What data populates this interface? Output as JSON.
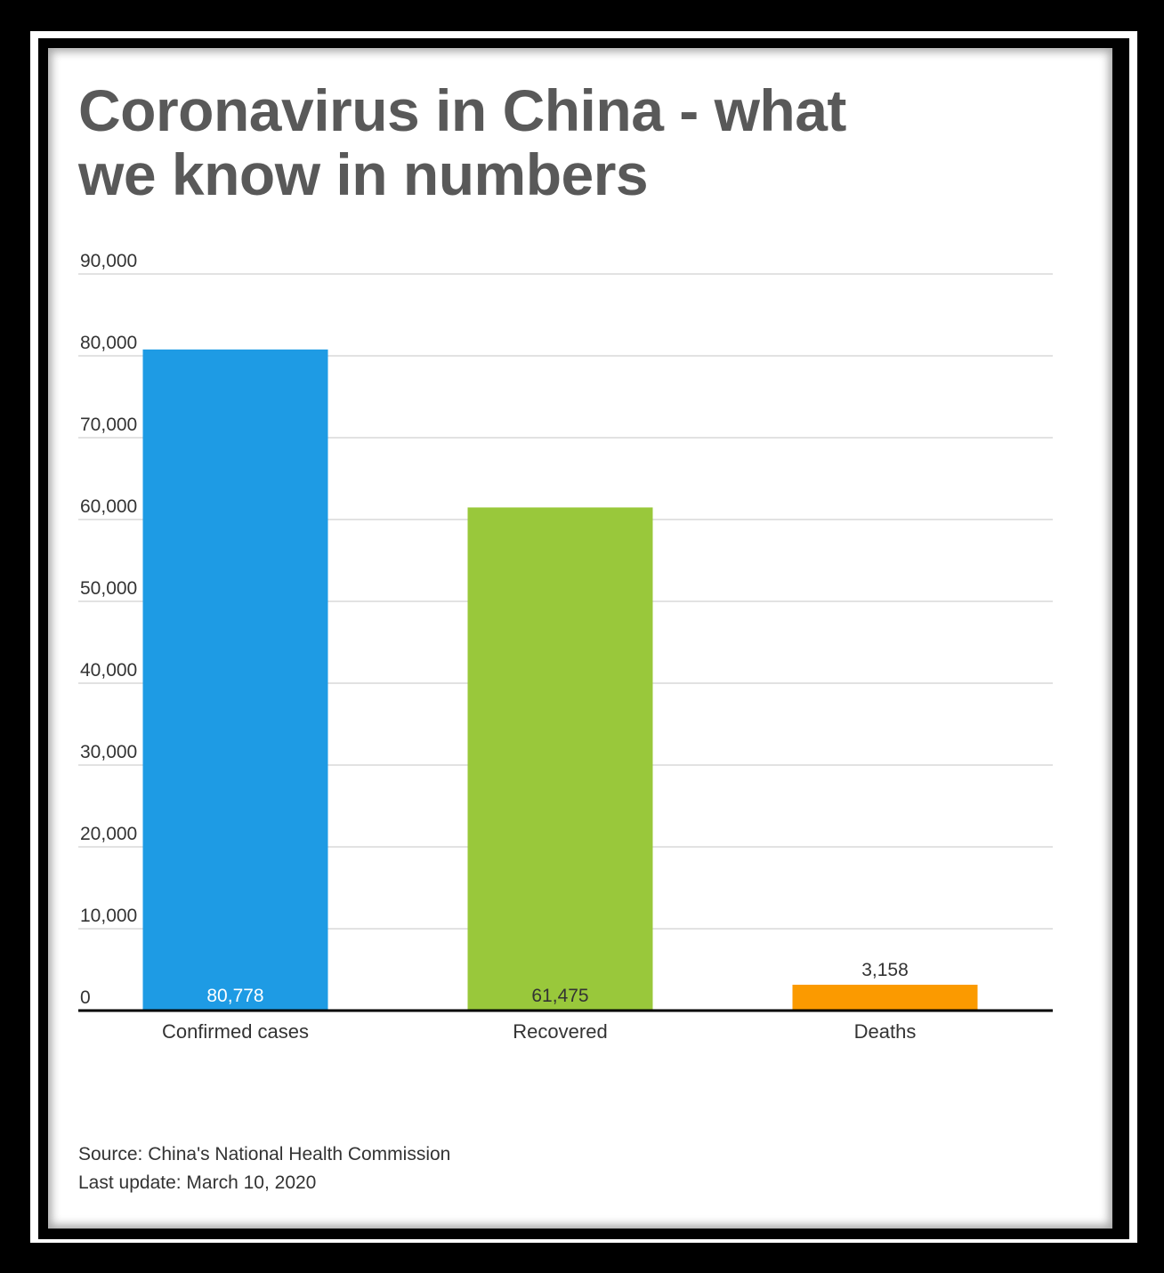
{
  "title_lines": [
    "Coronavirus in China - what",
    "we know in numbers"
  ],
  "source": "Source: China's National Health Commission",
  "last_update": "Last update: March 10, 2020",
  "colors": {
    "confirmed": "#1e9be4",
    "recovered": "#99c83b",
    "deaths": "#fb9a00",
    "grid": "#d9d9d9",
    "axis": "#000000",
    "text": "#333333",
    "title": "#595959"
  },
  "chart_data": {
    "type": "bar",
    "title": "Coronavirus in China - what we know in numbers",
    "xlabel": "",
    "ylabel": "",
    "ylim": [
      0,
      90000
    ],
    "yticks": [
      0,
      10000,
      20000,
      30000,
      40000,
      50000,
      60000,
      70000,
      80000,
      90000
    ],
    "ytick_labels": [
      "0",
      "10,000",
      "20,000",
      "30,000",
      "40,000",
      "50,000",
      "60,000",
      "70,000",
      "80,000",
      "90,000"
    ],
    "grid": true,
    "categories": [
      "Confirmed cases",
      "Recovered",
      "Deaths"
    ],
    "values": [
      80778,
      61475,
      3158
    ],
    "value_labels": [
      "80,778",
      "61,475",
      "3,158"
    ],
    "bar_colors": [
      "#1e9be4",
      "#99c83b",
      "#fb9a00"
    ],
    "label_colors": [
      "#ffffff",
      "#333333",
      "#333333"
    ],
    "label_positions": [
      "inside-bottom",
      "inside-bottom",
      "above"
    ]
  }
}
